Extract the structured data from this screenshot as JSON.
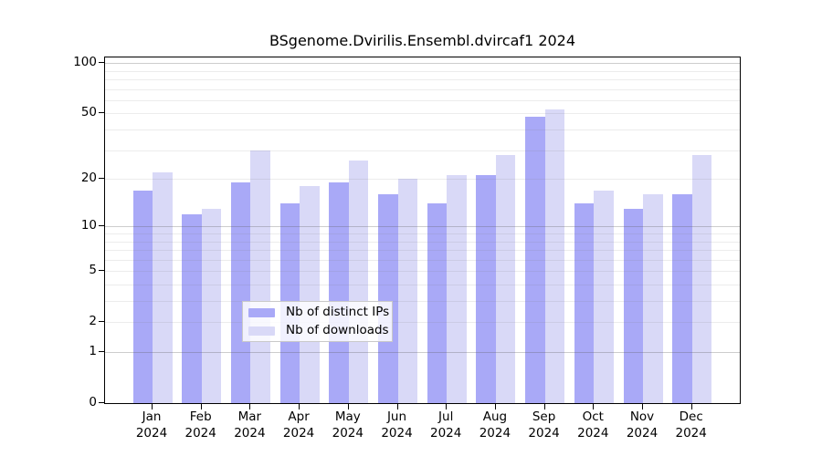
{
  "title": "BSgenome.Dvirilis.Ensembl.dvircaf1 2024",
  "chart_data": {
    "type": "bar",
    "scale": "log1p",
    "title": "BSgenome.Dvirilis.Ensembl.dvircaf1 2024",
    "categories": [
      "Jan",
      "Feb",
      "Mar",
      "Apr",
      "May",
      "Jun",
      "Jul",
      "Aug",
      "Sep",
      "Oct",
      "Nov",
      "Dec"
    ],
    "year": "2024",
    "series": [
      {
        "name": "Nb of distinct IPs",
        "color": "#a9a9f7",
        "values": [
          17,
          12,
          19,
          14,
          19,
          16,
          14,
          21,
          48,
          14,
          13,
          16
        ]
      },
      {
        "name": "Nb of downloads",
        "color": "#d9d9f7",
        "values": [
          22,
          13,
          30,
          18,
          26,
          20,
          21,
          28,
          53,
          17,
          16,
          28
        ]
      }
    ],
    "y_ticks": [
      0,
      1,
      2,
      5,
      10,
      20,
      50,
      100
    ],
    "ylim": [
      0,
      110
    ],
    "xlabel": "",
    "ylabel": "",
    "grid": "horizontal",
    "grid_major_values": [
      1,
      10,
      100
    ],
    "grid_minor_values": [
      2,
      3,
      4,
      5,
      6,
      7,
      8,
      9,
      20,
      30,
      40,
      50,
      60,
      70,
      80,
      90
    ],
    "grid_major_color": "#d2d2d2",
    "grid_minor_color": "#ededed",
    "legend_position": "bottom-center",
    "axis_color": "#000000",
    "background_color": "#ffffff"
  }
}
